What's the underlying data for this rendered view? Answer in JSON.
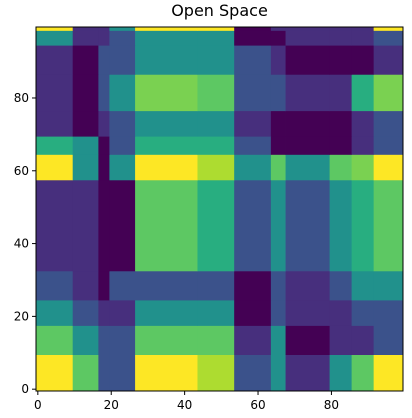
{
  "chart_data": {
    "type": "heatmap",
    "title": "Open Space",
    "xlabel": "",
    "ylabel": "",
    "xlim": [
      -0.5,
      99.5
    ],
    "ylim": [
      -0.5,
      99.5
    ],
    "xticks": [
      0,
      20,
      40,
      60,
      80
    ],
    "yticks": [
      0,
      20,
      40,
      60,
      80
    ],
    "grid": false,
    "colormap": "viridis",
    "x_boundaries": [
      0,
      10,
      17,
      20,
      27,
      44,
      54,
      64,
      68,
      80,
      86,
      92,
      100
    ],
    "y_boundaries": [
      0,
      10,
      18,
      25,
      33,
      58,
      65,
      70,
      77,
      87,
      95,
      100
    ],
    "cells": [
      [
        "#FDE725",
        "#5DC863",
        "#3B528B",
        "#3B528B",
        "#FDE725",
        "#ADDC30",
        "#3B528B",
        "#21918C",
        "#472F7D",
        "#21918C",
        "#5DC863",
        "#FDE725"
      ],
      [
        "#5DC863",
        "#21918C",
        "#3B528B",
        "#3B528B",
        "#5DC863",
        "#5DC863",
        "#472F7D",
        "#21918C",
        "#440154",
        "#472F7D",
        "#472F7D",
        "#3B528B"
      ],
      [
        "#21918C",
        "#3B528B",
        "#472F7D",
        "#472F7D",
        "#21918C",
        "#21918C",
        "#440154",
        "#3B528B",
        "#472F7D",
        "#472F7D",
        "#3B528B",
        "#3B528B"
      ],
      [
        "#3B528B",
        "#472F7D",
        "#440154",
        "#3B528B",
        "#3B528B",
        "#3B528B",
        "#440154",
        "#3B528B",
        "#472F7D",
        "#3B528B",
        "#21918C",
        "#21918C"
      ],
      [
        "#472F7D",
        "#472F7D",
        "#440154",
        "#440154",
        "#5DC863",
        "#28AE80",
        "#3B528B",
        "#21918C",
        "#3B528B",
        "#21918C",
        "#28AE80",
        "#5DC863"
      ],
      [
        "#FDE725",
        "#21918C",
        "#440154",
        "#21918C",
        "#FDE725",
        "#ADDC30",
        "#21918C",
        "#5DC863",
        "#21918C",
        "#5DC863",
        "#7AD151",
        "#FDE725"
      ],
      [
        "#28AE80",
        "#21918C",
        "#440154",
        "#3B528B",
        "#28AE80",
        "#28AE80",
        "#3B528B",
        "#440154",
        "#440154",
        "#440154",
        "#472F7D",
        "#3B528B"
      ],
      [
        "#472F7D",
        "#440154",
        "#472F7D",
        "#3B528B",
        "#21918C",
        "#21918C",
        "#472F7D",
        "#440154",
        "#440154",
        "#440154",
        "#472F7D",
        "#3B528B"
      ],
      [
        "#472F7D",
        "#440154",
        "#3B528B",
        "#21918C",
        "#7AD151",
        "#5DC863",
        "#3B528B",
        "#3B528B",
        "#472F7D",
        "#472F7D",
        "#28AE80",
        "#7AD151"
      ],
      [
        "#472F7D",
        "#440154",
        "#3B528B",
        "#3B528B",
        "#21918C",
        "#21918C",
        "#3B528B",
        "#472F7D",
        "#440154",
        "#440154",
        "#440154",
        "#472F7D"
      ],
      [
        "#21918C",
        "#472F7D",
        "#472F7D",
        "#3B528B",
        "#21918C",
        "#21918C",
        "#440154",
        "#440154",
        "#472F7D",
        "#472F7D",
        "#472F7D",
        "#3B528B"
      ]
    ],
    "top_row": [
      "#FDE725",
      "#472F7D",
      "#472F7D",
      "#21918C",
      "#FDE725",
      "#FDE725",
      "#440154",
      "#472F7D",
      "#472F7D",
      "#472F7D",
      "#472F7D",
      "#FDE725"
    ]
  }
}
